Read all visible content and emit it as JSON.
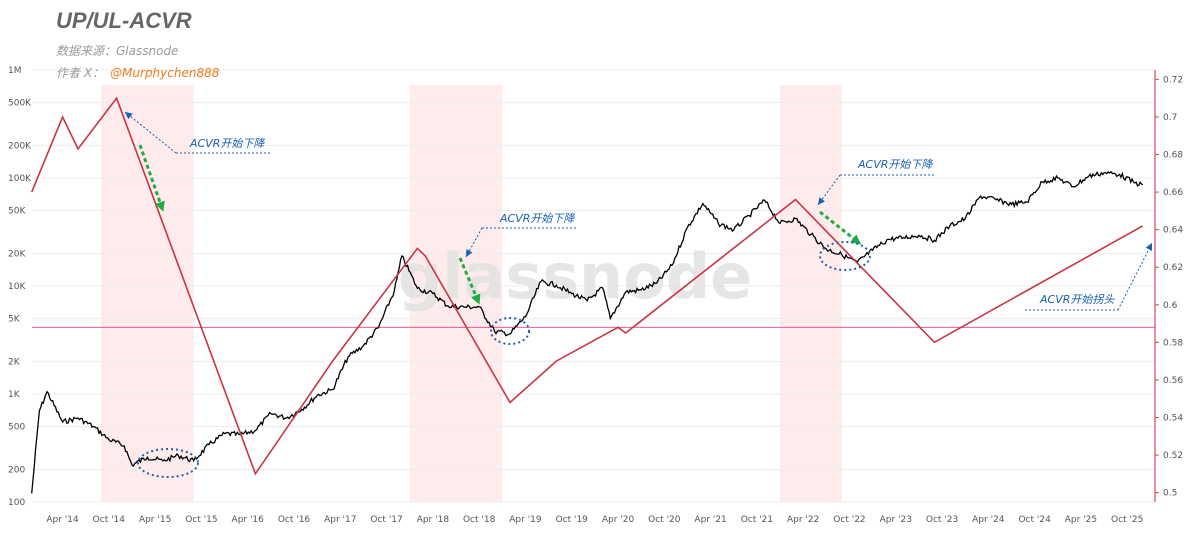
{
  "title": "UP/UL-ACVR",
  "source_label": "数据来源：Glassnode",
  "author_label": "作者 X：",
  "author_handle": "@Murphychen888",
  "watermark": "glassnode",
  "colors": {
    "price": "#000000",
    "acvr": "#cc3344",
    "threshold": "#f05a9a",
    "shade": "#fde4e4",
    "annotation": "#1a5fb4",
    "arrow_green": "#22aa44"
  },
  "chart_data": {
    "type": "line",
    "x_ticks": [
      "Apr '14",
      "Oct '14",
      "Apr '15",
      "Oct '15",
      "Apr '16",
      "Oct '16",
      "Apr '17",
      "Oct '17",
      "Apr '18",
      "Oct '18",
      "Apr '19",
      "Oct '19",
      "Apr '20",
      "Oct '20",
      "Apr '21",
      "Oct '21",
      "Apr '22",
      "Oct '22",
      "Apr '23",
      "Oct '23",
      "Apr '24",
      "Oct '24",
      "Apr '25",
      "Oct '25"
    ],
    "left_axis": {
      "scale": "log",
      "ticks": [
        "1M",
        "500K",
        "200K",
        "100K",
        "50K",
        "20K",
        "10K",
        "5K",
        "2K",
        "1K",
        "500",
        "200",
        "100"
      ],
      "range": [
        100,
        1000000
      ]
    },
    "right_axis": {
      "scale": "linear",
      "ticks": [
        "0.72",
        "0.7",
        "0.68",
        "0.66",
        "0.64",
        "0.62",
        "0.6",
        "0.58",
        "0.56",
        "0.54",
        "0.52",
        "0.5"
      ],
      "range": [
        0.495,
        0.725
      ]
    },
    "shaded_periods": [
      {
        "start": "2014-09",
        "end": "2015-09"
      },
      {
        "start": "2018-01",
        "end": "2019-01"
      },
      {
        "start": "2022-01",
        "end": "2022-09"
      }
    ],
    "threshold_line": {
      "value": 0.588
    },
    "series": [
      {
        "values_axis": "left",
        "x": [
          "2013-12",
          "2014-01",
          "2014-02",
          "2014-04",
          "2014-06",
          "2014-08",
          "2014-10",
          "2014-12",
          "2015-01",
          "2015-03",
          "2015-05",
          "2015-07",
          "2015-09",
          "2015-11",
          "2016-01",
          "2016-03",
          "2016-05",
          "2016-07",
          "2016-09",
          "2016-11",
          "2017-01",
          "2017-03",
          "2017-05",
          "2017-07",
          "2017-09",
          "2017-11",
          "2017-12",
          "2018-02",
          "2018-04",
          "2018-06",
          "2018-08",
          "2018-10",
          "2018-12",
          "2019-02",
          "2019-04",
          "2019-06",
          "2019-08",
          "2019-10",
          "2019-12",
          "2020-02",
          "2020-03",
          "2020-05",
          "2020-07",
          "2020-09",
          "2020-11",
          "2021-01",
          "2021-03",
          "2021-05",
          "2021-07",
          "2021-09",
          "2021-11",
          "2022-01",
          "2022-03",
          "2022-05",
          "2022-07",
          "2022-09",
          "2022-11",
          "2023-01",
          "2023-03",
          "2023-05",
          "2023-07",
          "2023-09",
          "2023-11",
          "2024-01",
          "2024-03",
          "2024-05",
          "2024-07",
          "2024-09",
          "2024-11",
          "2025-01",
          "2025-03",
          "2025-05",
          "2025-07",
          "2025-09",
          "2025-11",
          "2025-12"
        ],
        "values": [
          120,
          700,
          1050,
          550,
          600,
          500,
          380,
          330,
          220,
          260,
          240,
          270,
          240,
          340,
          430,
          420,
          460,
          660,
          600,
          720,
          970,
          1100,
          2200,
          2800,
          4200,
          9000,
          19000,
          9500,
          8500,
          6500,
          6400,
          6400,
          3800,
          3600,
          5200,
          11000,
          10200,
          8500,
          7300,
          9600,
          5000,
          8800,
          9200,
          10600,
          15500,
          35000,
          58000,
          38000,
          33000,
          45000,
          62000,
          38000,
          42000,
          30000,
          22000,
          19500,
          16500,
          21500,
          27000,
          28000,
          29500,
          26500,
          36000,
          42000,
          68000,
          63000,
          57000,
          60000,
          92000,
          100000,
          83000,
          104000,
          112000,
          108000,
          90000,
          86000
        ]
      },
      {
        "values_axis": "right",
        "x": [
          "2013-12",
          "2014-04",
          "2014-06",
          "2014-11",
          "2016-05",
          "2017-03",
          "2018-02",
          "2018-03",
          "2019-02",
          "2019-08",
          "2020-04",
          "2020-05",
          "2022-03",
          "2023-09",
          "2025-12"
        ],
        "values": [
          0.66,
          0.7,
          0.683,
          0.71,
          0.51,
          0.57,
          0.63,
          0.626,
          0.548,
          0.57,
          0.588,
          0.585,
          0.656,
          0.58,
          0.642
        ]
      }
    ],
    "annotations": [
      {
        "text": "ACVR开始下降"
      },
      {
        "text": "ACVR开始下降"
      },
      {
        "text": "ACVR开始下降"
      },
      {
        "text": "ACVR开始拐头"
      }
    ]
  }
}
